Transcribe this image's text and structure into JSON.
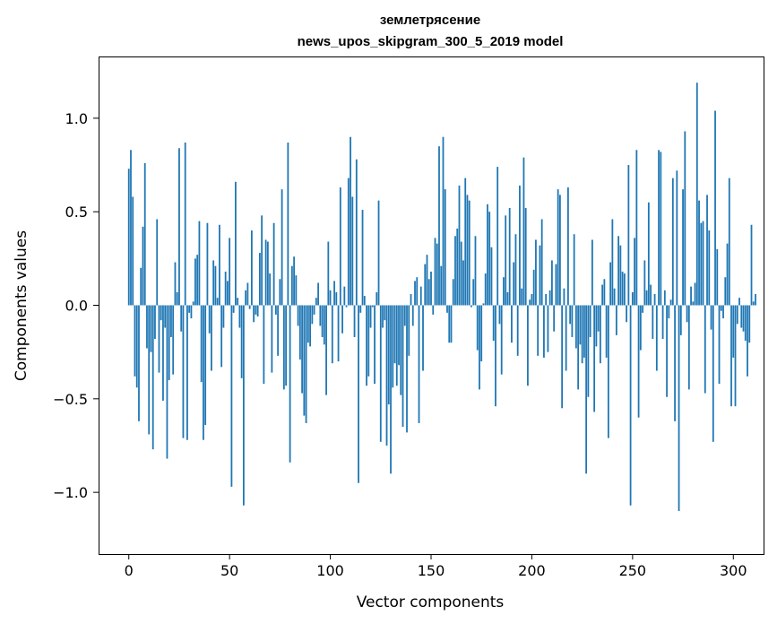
{
  "chart_data": {
    "type": "bar",
    "title": "землетрясение",
    "subtitle": "news_upos_skipgram_300_5_2019 model",
    "xlabel": "Vector components",
    "ylabel": "Components values",
    "xlim": [
      -15,
      315
    ],
    "ylim": [
      -1.33,
      1.33
    ],
    "xticks": [
      0,
      50,
      100,
      150,
      200,
      250,
      300
    ],
    "xtick_labels": [
      "0",
      "50",
      "100",
      "150",
      "200",
      "250",
      "300"
    ],
    "yticks": [
      -1.0,
      -0.5,
      0.0,
      0.5,
      1.0
    ],
    "ytick_labels": [
      "−1.0",
      "−0.5",
      "0.0",
      "0.5",
      "1.0"
    ],
    "bar_color": "#1f77b4",
    "grid": false,
    "values": [
      0.73,
      0.83,
      0.58,
      -0.38,
      -0.44,
      -0.62,
      0.2,
      0.42,
      0.76,
      -0.23,
      -0.69,
      -0.25,
      -0.77,
      -0.18,
      0.46,
      -0.36,
      -0.08,
      -0.51,
      -0.12,
      -0.82,
      -0.4,
      -0.17,
      -0.37,
      0.23,
      0.07,
      0.84,
      -0.14,
      -0.71,
      0.87,
      -0.72,
      -0.04,
      -0.07,
      0.02,
      0.25,
      0.27,
      0.45,
      -0.41,
      -0.72,
      -0.64,
      0.44,
      -0.15,
      -0.35,
      0.24,
      0.21,
      0.04,
      0.43,
      -0.33,
      -0.12,
      0.18,
      0.13,
      0.36,
      -0.97,
      -0.04,
      0.66,
      0.04,
      -0.12,
      -0.39,
      -1.07,
      0.08,
      0.12,
      -0.02,
      0.4,
      -0.09,
      -0.05,
      -0.06,
      0.28,
      0.48,
      -0.42,
      0.35,
      0.34,
      0.17,
      -0.36,
      0.44,
      -0.05,
      -0.27,
      0.14,
      0.62,
      -0.45,
      -0.43,
      0.87,
      -0.84,
      0.21,
      0.26,
      0.16,
      -0.11,
      -0.29,
      -0.47,
      -0.59,
      -0.63,
      -0.2,
      -0.22,
      -0.1,
      -0.05,
      0.04,
      0.12,
      -0.11,
      -0.17,
      -0.21,
      -0.48,
      0.34,
      0.08,
      -0.31,
      0.13,
      0.07,
      -0.3,
      0.63,
      -0.15,
      0.1,
      -0.01,
      0.68,
      0.9,
      0.58,
      -0.17,
      0.78,
      -0.95,
      -0.04,
      0.51,
      0.05,
      -0.43,
      -0.38,
      -0.12,
      -0.01,
      -0.42,
      0.07,
      0.56,
      -0.73,
      -0.12,
      -0.08,
      -0.75,
      -0.53,
      -0.9,
      -0.44,
      -0.31,
      -0.43,
      -0.32,
      -0.48,
      -0.65,
      -0.11,
      -0.68,
      -0.27,
      0.06,
      -0.11,
      0.13,
      0.15,
      -0.63,
      0.1,
      -0.35,
      0.22,
      0.27,
      0.14,
      0.18,
      -0.05,
      0.36,
      0.33,
      0.85,
      0.21,
      0.9,
      0.62,
      -0.04,
      -0.2,
      -0.2,
      0.14,
      0.37,
      0.41,
      0.64,
      0.34,
      0.24,
      0.68,
      0.59,
      0.56,
      -0.01,
      0.14,
      0.37,
      -0.24,
      -0.45,
      -0.3,
      0.01,
      0.17,
      0.54,
      0.5,
      0.31,
      -0.19,
      -0.54,
      0.74,
      -0.1,
      -0.37,
      0.15,
      0.48,
      0.07,
      0.52,
      -0.2,
      0.23,
      0.38,
      -0.27,
      0.64,
      0.09,
      0.79,
      0.52,
      -0.43,
      0.03,
      0.06,
      0.19,
      0.35,
      -0.27,
      0.32,
      0.46,
      -0.28,
      0.06,
      -0.25,
      0.08,
      0.24,
      -0.14,
      0.22,
      0.62,
      0.59,
      -0.55,
      0.09,
      -0.35,
      0.63,
      -0.1,
      -0.17,
      0.38,
      -0.23,
      -0.45,
      -0.21,
      -0.31,
      -0.28,
      -0.9,
      -0.49,
      -0.17,
      0.35,
      -0.57,
      -0.22,
      -0.14,
      -0.31,
      0.11,
      0.14,
      -0.28,
      -0.71,
      0.23,
      0.46,
      0.09,
      -0.16,
      0.37,
      0.32,
      0.18,
      0.17,
      -0.09,
      0.75,
      -1.07,
      0.07,
      0.36,
      0.83,
      -0.6,
      -0.24,
      -0.04,
      0.24,
      0.08,
      0.55,
      0.11,
      -0.18,
      0.06,
      -0.35,
      0.83,
      0.82,
      -0.18,
      0.08,
      -0.49,
      -0.07,
      0.03,
      0.68,
      -0.62,
      0.72,
      -1.1,
      -0.16,
      0.62,
      0.93,
      -0.09,
      -0.45,
      0.1,
      0.02,
      0.12,
      1.19,
      0.56,
      0.44,
      0.45,
      -0.47,
      0.59,
      0.4,
      -0.13,
      -0.73,
      1.04,
      0.3,
      -0.42,
      -0.03,
      -0.07,
      0.15,
      0.33,
      0.68,
      -0.54,
      -0.28,
      -0.54,
      -0.1,
      0.04,
      -0.12,
      -0.14,
      -0.19,
      -0.38,
      -0.2,
      0.43,
      0.02,
      0.06
    ]
  }
}
